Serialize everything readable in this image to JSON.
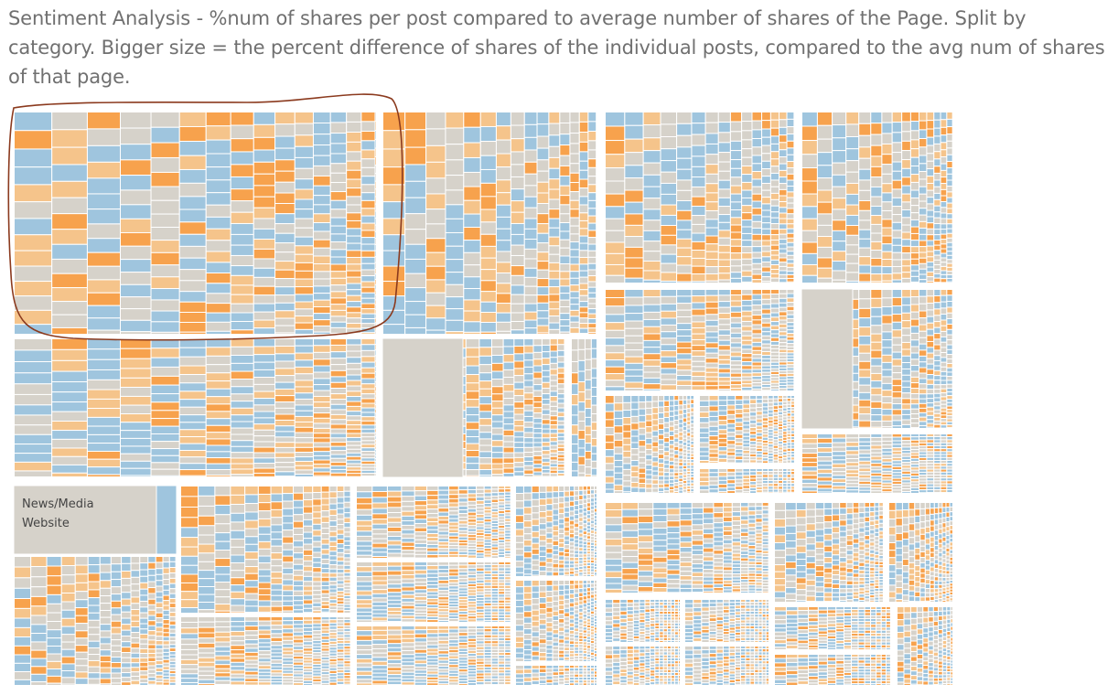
{
  "title": "Sentiment Analysis - %num of shares per post compared to average number of shares of the Page. Split by category. Bigger size = the percent difference of shares of the individual posts, compared to the avg num of shares of that page.",
  "chart_data": {
    "type": "treemap",
    "title": "Sentiment Analysis - %num of shares per post compared to average number of shares of the Page. Split by category. Bigger size = the percent difference of shares of the individual posts, compared to the avg num of shares of that page.",
    "size_measure": "percent difference of shares of the individual posts, compared to the avg num of shares of that page",
    "group_by": "category",
    "visible_category_labels": [
      {
        "line1": "News/Media",
        "line2": "Website"
      }
    ],
    "palette": {
      "blue": "#9FC5DE",
      "gray": "#D6D2CA",
      "light_orange": "#F5C48B",
      "orange": "#F7A24D",
      "dark": "#5D6D8C"
    },
    "annotation": "hand-drawn ellipse around the top-left category group",
    "annotation_color": "#8B3A1E"
  }
}
